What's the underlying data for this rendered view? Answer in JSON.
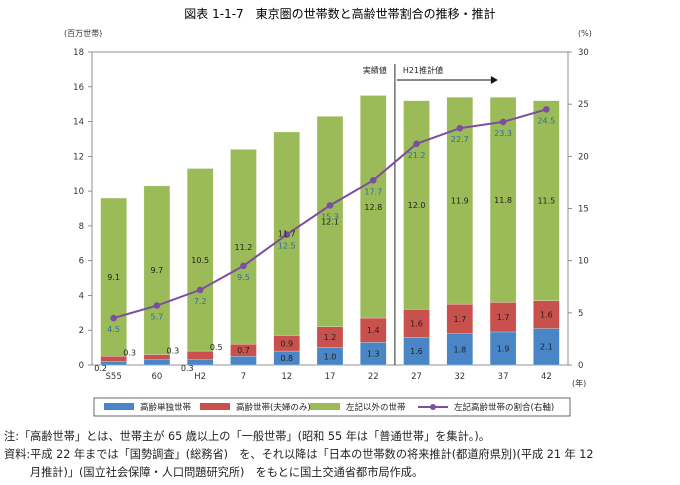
{
  "title": "図表 1-1-7　東京圏の世帯数と高齢世帯割合の推移・推計",
  "notes": [
    "注:「高齢世帯」とは、世帯主が 65 歳以上の「一般世帯」(昭和 55 年は「普通世帯」を集計。)。",
    "資料:平成 22 年までは「国勢調査」(総務省)　を、それ以降は「日本の世帯数の将来推計(都道府県別)(平成 21 年 12",
    "　　 月推計)」(国立社会保障・人口問題研究所)　をもとに国土交通省都市局作成。"
  ],
  "chart_data": {
    "type": "bar",
    "stacked": true,
    "categories": [
      "S55",
      "60",
      "H2",
      "7",
      "12",
      "17",
      "22",
      "27",
      "32",
      "37",
      "42"
    ],
    "x_unit": "(年)",
    "y_unit": "(百万世帯)",
    "y2_unit": "(%)",
    "ylim": [
      0,
      18
    ],
    "yticks": [
      0,
      2,
      4,
      6,
      8,
      10,
      12,
      14,
      16,
      18
    ],
    "y2lim": [
      0,
      30
    ],
    "y2ticks": [
      0,
      5,
      10,
      15,
      20,
      25,
      30
    ],
    "grid": false,
    "series": [
      {
        "name": "高齢単独世帯",
        "color": "#4a86c5",
        "values": [
          0.2,
          0.3,
          0.3,
          0.5,
          0.8,
          1.0,
          1.3,
          1.6,
          1.8,
          1.9,
          2.1
        ],
        "labels": [
          "0.2",
          "",
          "0.3",
          "",
          "0.8",
          "1.0",
          "1.3",
          "1.6",
          "1.8",
          "1.9",
          "2.1"
        ]
      },
      {
        "name": "高齢世帯(夫婦のみ)",
        "color": "#c8504d",
        "values": [
          0.3,
          0.3,
          0.5,
          0.7,
          0.9,
          1.2,
          1.4,
          1.6,
          1.7,
          1.7,
          1.6
        ],
        "labels": [
          "0.3",
          "0.3",
          "0.5",
          "0.7",
          "0.9",
          "1.2",
          "1.4",
          "1.6",
          "1.7",
          "1.7",
          "1.6"
        ]
      },
      {
        "name": "左記以外の世帯",
        "color": "#9bbb59",
        "values": [
          9.1,
          9.7,
          10.5,
          11.2,
          11.7,
          12.1,
          12.8,
          12.0,
          11.9,
          11.8,
          11.5
        ],
        "labels": [
          "9.1",
          "9.7",
          "10.5",
          "11.2",
          "11.7",
          "12.1",
          "12.8",
          "12.0",
          "11.9",
          "11.8",
          "11.5"
        ]
      }
    ],
    "line": {
      "name": "左記高齢世帯の割合(右軸)",
      "color": "#7b4f9e",
      "axis": "right",
      "values": [
        4.5,
        5.7,
        7.2,
        9.5,
        12.5,
        15.3,
        17.7,
        21.2,
        22.7,
        23.3,
        24.5
      ],
      "labels": [
        "4.5",
        "5.7",
        "7.2",
        "9.5",
        "12.5",
        "15.3",
        "17.7",
        "21.2",
        "22.7",
        "23.3",
        "24.5"
      ]
    },
    "annotations": {
      "actual": "実績値",
      "projection": "H21推計値"
    },
    "legend_position": "bottom"
  }
}
